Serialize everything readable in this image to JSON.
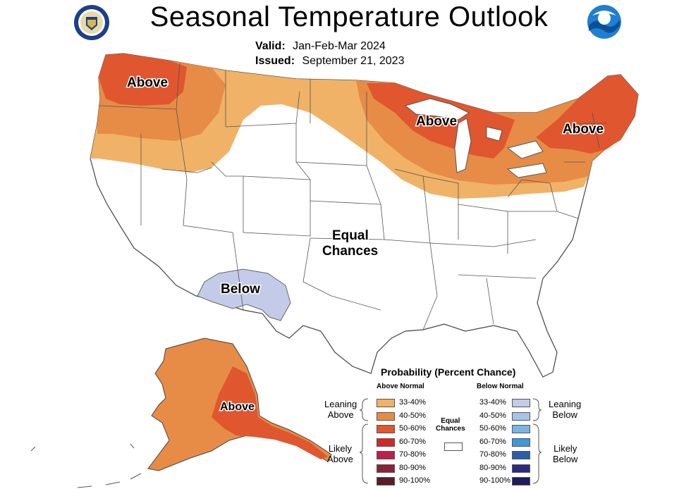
{
  "title": "Seasonal Temperature Outlook",
  "valid_label": "Valid:",
  "valid_value": "Jan-Feb-Mar 2024",
  "issued_label": "Issued:",
  "issued_value": "September 21, 2023",
  "map_labels": {
    "above_west": "Above",
    "above_midwest": "Above",
    "above_northeast": "Above",
    "above_alaska": "Above",
    "below_southwest": "Below",
    "equal_1": "Equal",
    "equal_2": "Chances"
  },
  "legend": {
    "title": "Probability (Percent Chance)",
    "above_header": "Above Normal",
    "below_header": "Below Normal",
    "leaning_above": [
      "Leaning",
      "Above"
    ],
    "likely_above": [
      "Likely",
      "Above"
    ],
    "leaning_below": [
      "Leaning",
      "Below"
    ],
    "likely_below": [
      "Likely",
      "Below"
    ],
    "equal_chances": [
      "Equal",
      "Chances"
    ],
    "above_bins": [
      {
        "label": "33-40%",
        "color": "#f0b266"
      },
      {
        "label": "40-50%",
        "color": "#e68c47"
      },
      {
        "label": "50-60%",
        "color": "#e0562e"
      },
      {
        "label": "60-70%",
        "color": "#cf2a2a"
      },
      {
        "label": "70-80%",
        "color": "#c21e4a"
      },
      {
        "label": "80-90%",
        "color": "#8a2338"
      },
      {
        "label": "90-100%",
        "color": "#5e1a26"
      }
    ],
    "below_bins": [
      {
        "label": "33-40%",
        "color": "#c3cbe8"
      },
      {
        "label": "40-50%",
        "color": "#a5c4e6"
      },
      {
        "label": "50-60%",
        "color": "#79b5e3"
      },
      {
        "label": "60-70%",
        "color": "#3f96d8"
      },
      {
        "label": "70-80%",
        "color": "#2a5fa8"
      },
      {
        "label": "80-90%",
        "color": "#2c2a80"
      },
      {
        "label": "90-100%",
        "color": "#1f1b5e"
      }
    ]
  },
  "colors": {
    "above_33_40": "#f0b266",
    "above_40_50": "#e68c47",
    "above_50_60": "#e0562e",
    "below_33_40": "#c3cbe8",
    "land": "#ffffff",
    "border": "#444444"
  }
}
